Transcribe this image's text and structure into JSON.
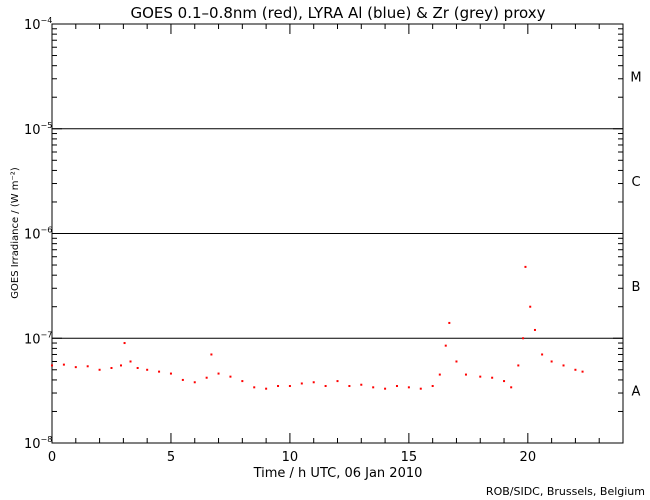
{
  "chart_data": {
    "type": "scatter",
    "title": "GOES 0.1–0.8nm (red), LYRA Al (blue) & Zr (grey) proxy",
    "xlabel": "Time / h UTC, 06 Jan 2010",
    "ylabel": "GOES Irradiance / (W m⁻²)",
    "xlim": [
      0,
      24
    ],
    "ylim": [
      1e-08,
      0.0001
    ],
    "yscale": "log",
    "x_ticks": [
      {
        "value": 0,
        "label": "0"
      },
      {
        "value": 5,
        "label": "5"
      },
      {
        "value": 10,
        "label": "10"
      },
      {
        "value": 15,
        "label": "15"
      },
      {
        "value": 20,
        "label": "20"
      }
    ],
    "y_ticks": [
      {
        "value": 1e-08,
        "base": "10",
        "exp": "−8"
      },
      {
        "value": 1e-07,
        "base": "10",
        "exp": "−7"
      },
      {
        "value": 1e-06,
        "base": "10",
        "exp": "−6"
      },
      {
        "value": 1e-05,
        "base": "10",
        "exp": "−5"
      },
      {
        "value": 0.0001,
        "base": "10",
        "exp": "−4"
      }
    ],
    "flare_class_lines": [
      1e-07,
      1e-06,
      1e-05
    ],
    "flare_classes": [
      {
        "label": "A",
        "center": 3.16e-08
      },
      {
        "label": "B",
        "center": 3.16e-07
      },
      {
        "label": "C",
        "center": 3.16e-06
      },
      {
        "label": "M",
        "center": 3.16e-05
      }
    ],
    "series": [
      {
        "name": "GOES 0.1-0.8nm",
        "color": "#ff0000",
        "x": [
          0,
          0.5,
          1,
          1.5,
          2,
          2.5,
          2.9,
          3.05,
          3.3,
          3.6,
          4,
          4.5,
          5,
          5.5,
          6,
          6.5,
          6.7,
          7,
          7.5,
          8,
          8.5,
          9,
          9.5,
          10,
          10.5,
          11,
          11.5,
          12,
          12.5,
          13,
          13.5,
          14,
          14.5,
          15,
          15.5,
          16,
          16.3,
          16.55,
          16.7,
          17,
          17.4,
          18,
          18.5,
          19,
          19.3,
          19.6,
          19.8,
          19.9,
          20.1,
          20.3,
          20.6,
          21,
          21.5,
          22,
          22.3
        ],
        "y": [
          5.5e-08,
          5.6e-08,
          5.3e-08,
          5.4e-08,
          5e-08,
          5.2e-08,
          5.5e-08,
          9e-08,
          6e-08,
          5.2e-08,
          5e-08,
          4.8e-08,
          4.6e-08,
          4e-08,
          3.8e-08,
          4.2e-08,
          7e-08,
          4.6e-08,
          4.3e-08,
          3.9e-08,
          3.4e-08,
          3.3e-08,
          3.5e-08,
          3.5e-08,
          3.7e-08,
          3.8e-08,
          3.5e-08,
          3.9e-08,
          3.5e-08,
          3.6e-08,
          3.4e-08,
          3.3e-08,
          3.5e-08,
          3.4e-08,
          3.3e-08,
          3.5e-08,
          4.5e-08,
          8.5e-08,
          1.4e-07,
          6e-08,
          4.5e-08,
          4.3e-08,
          4.2e-08,
          3.9e-08,
          3.4e-08,
          5.5e-08,
          1e-07,
          4.8e-07,
          2e-07,
          1.2e-07,
          7e-08,
          6e-08,
          5.5e-08,
          5e-08,
          4.8e-08
        ]
      }
    ]
  },
  "credit": "ROB/SIDC, Brussels, Belgium"
}
